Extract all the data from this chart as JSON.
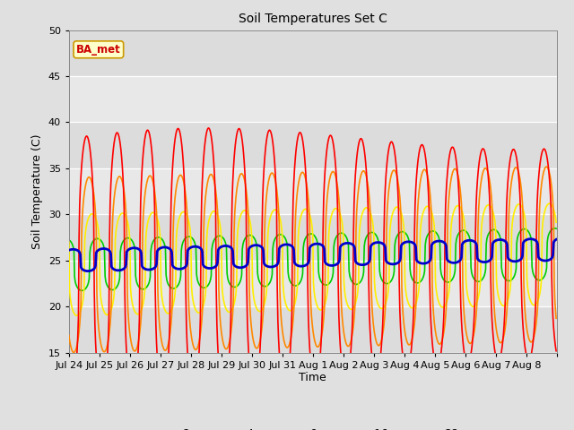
{
  "title": "Soil Temperatures Set C",
  "xlabel": "Time",
  "ylabel": "Soil Temperature (C)",
  "ylim": [
    15,
    50
  ],
  "yticks": [
    15,
    20,
    25,
    30,
    35,
    40,
    45,
    50
  ],
  "bg_outer": "#e0e0e0",
  "bg_plot": "#e8e8e8",
  "grid_color": "#ffffff",
  "annotation_text": "BA_met",
  "annotation_bg": "#ffffcc",
  "annotation_border": "#cc9900",
  "annotation_text_color": "#cc0000",
  "series_colors": {
    "-2cm": "#ff0000",
    "-4cm": "#ff8800",
    "-8cm": "#ffee00",
    "-16cm": "#00cc00",
    "-32cm": "#0000cc"
  },
  "series_lw": {
    "-2cm": 1.2,
    "-4cm": 1.2,
    "-8cm": 1.2,
    "-16cm": 1.2,
    "-32cm": 2.0
  },
  "x_tick_labels": [
    "Jul 24",
    "Jul 25",
    "Jul 26",
    "Jul 27",
    "Jul 28",
    "Jul 29",
    "Jul 30",
    "Jul 31",
    "Aug 1",
    "Aug 2",
    "Aug 3",
    "Aug 4",
    "Aug 5",
    "Aug 6",
    "Aug 7",
    "Aug 8"
  ],
  "n_days": 16,
  "points_per_day": 48,
  "base_mean": 24.5,
  "amp_2cm": 13.0,
  "amp_4cm": 9.5,
  "amp_8cm": 5.5,
  "amp_16cm": 2.8,
  "amp_32cm": 1.2,
  "phase_2cm": 0.0,
  "phase_4cm": 0.08,
  "phase_8cm": 0.18,
  "phase_16cm": 0.35,
  "phase_32cm": 0.55,
  "base_drift": 1.2
}
